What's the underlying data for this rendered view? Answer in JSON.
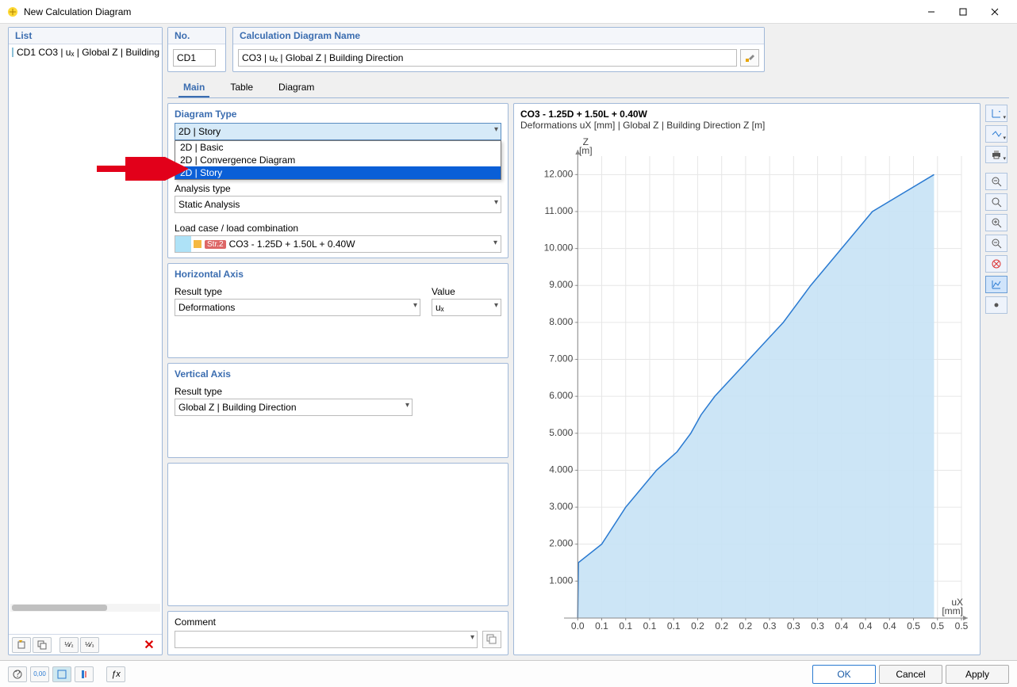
{
  "window": {
    "title": "New Calculation Diagram"
  },
  "list": {
    "header": "List",
    "items": [
      {
        "label": "CD1  CO3 | uₓ | Global Z | Building"
      }
    ]
  },
  "no_box": {
    "header": "No.",
    "value": "CD1"
  },
  "name_box": {
    "header": "Calculation Diagram Name",
    "value": "CO3 | uₓ | Global Z | Building Direction"
  },
  "tabs": {
    "items": [
      "Main",
      "Table",
      "Diagram"
    ],
    "active": 0
  },
  "diagram_type": {
    "title": "Diagram Type",
    "selected": "2D | Story",
    "options": [
      "2D | Basic",
      "2D | Convergence Diagram",
      "2D | Story"
    ],
    "highlighted": "2D | Story",
    "analysis_label": "Analysis type",
    "analysis_value": "Static Analysis",
    "lc_label": "Load case / load combination",
    "lc_tag": "Str.2",
    "lc_value": "CO3 - 1.25D + 1.50L + 0.40W"
  },
  "haxis": {
    "title": "Horizontal Axis",
    "result_label": "Result type",
    "result_value": "Deformations",
    "value_label": "Value",
    "value_value": "uₓ"
  },
  "vaxis": {
    "title": "Vertical Axis",
    "result_label": "Result type",
    "result_value": "Global Z | Building Direction"
  },
  "comment": {
    "title": "Comment",
    "value": ""
  },
  "chart": {
    "line1": "CO3 - 1.25D + 1.50L + 0.40W",
    "line2": "Deformations uX [mm] | Global Z | Building Direction Z [m]",
    "y_axis_label_top1": "Z",
    "y_axis_label_top2": "[m]",
    "x_axis_label1": "uX",
    "x_axis_label2": "[mm]",
    "y_ticks": [
      "1.000",
      "2.000",
      "3.000",
      "4.000",
      "5.000",
      "6.000",
      "7.000",
      "8.000",
      "9.000",
      "10.000",
      "11.000",
      "12.000"
    ],
    "x_ticks": [
      "0.0",
      "0.1",
      "0.1",
      "0.1",
      "0.1",
      "0.2",
      "0.2",
      "0.2",
      "0.3",
      "0.3",
      "0.3",
      "0.4",
      "0.4",
      "0.4",
      "0.5",
      "0.5",
      "0.5"
    ],
    "data": [
      [
        0.0,
        0.0
      ],
      [
        0.001,
        1.5
      ],
      [
        0.035,
        2.0
      ],
      [
        0.07,
        3.0
      ],
      [
        0.115,
        4.0
      ],
      [
        0.145,
        4.5
      ],
      [
        0.165,
        5.0
      ],
      [
        0.18,
        5.5
      ],
      [
        0.2,
        6.0
      ],
      [
        0.25,
        7.0
      ],
      [
        0.3,
        8.0
      ],
      [
        0.34,
        9.0
      ],
      [
        0.385,
        10.0
      ],
      [
        0.43,
        11.0
      ],
      [
        0.52,
        12.0
      ]
    ],
    "x_domain": [
      -0.02,
      0.56
    ],
    "y_domain": [
      0,
      12.5
    ],
    "line_color": "#2a7ad1",
    "fill_color": "#c6e2f5",
    "grid_color": "#e6e6e6",
    "axis_color": "#888888",
    "tick_font_size": 10,
    "background": "#ffffff"
  },
  "buttons": {
    "ok": "OK",
    "cancel": "Cancel",
    "apply": "Apply"
  }
}
